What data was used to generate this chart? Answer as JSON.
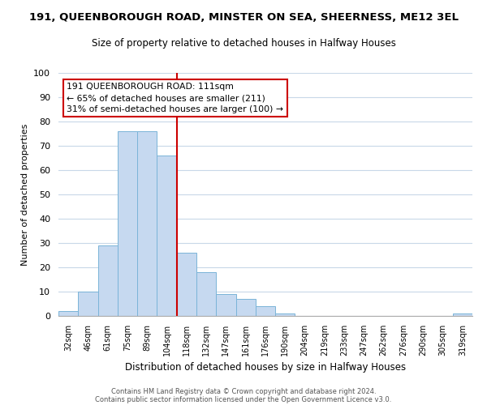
{
  "title": "191, QUEENBOROUGH ROAD, MINSTER ON SEA, SHEERNESS, ME12 3EL",
  "subtitle": "Size of property relative to detached houses in Halfway Houses",
  "xlabel": "Distribution of detached houses by size in Halfway Houses",
  "ylabel": "Number of detached properties",
  "bar_labels": [
    "32sqm",
    "46sqm",
    "61sqm",
    "75sqm",
    "89sqm",
    "104sqm",
    "118sqm",
    "132sqm",
    "147sqm",
    "161sqm",
    "176sqm",
    "190sqm",
    "204sqm",
    "219sqm",
    "233sqm",
    "247sqm",
    "262sqm",
    "276sqm",
    "290sqm",
    "305sqm",
    "319sqm"
  ],
  "bar_heights": [
    2,
    10,
    29,
    76,
    76,
    66,
    26,
    18,
    9,
    7,
    4,
    1,
    0,
    0,
    0,
    0,
    0,
    0,
    0,
    0,
    1
  ],
  "bar_color": "#c6d9f0",
  "bar_edge_color": "#7ab4d8",
  "ylim": [
    0,
    100
  ],
  "yticks": [
    0,
    10,
    20,
    30,
    40,
    50,
    60,
    70,
    80,
    90,
    100
  ],
  "property_line_x": 5.5,
  "property_line_color": "#cc0000",
  "annotation_title": "191 QUEENBOROUGH ROAD: 111sqm",
  "annotation_line1": "← 65% of detached houses are smaller (211)",
  "annotation_line2": "31% of semi-detached houses are larger (100) →",
  "annotation_box_color": "#ffffff",
  "annotation_box_edge": "#cc0000",
  "footer1": "Contains HM Land Registry data © Crown copyright and database right 2024.",
  "footer2": "Contains public sector information licensed under the Open Government Licence v3.0.",
  "background_color": "#ffffff",
  "grid_color": "#c8d8e8"
}
